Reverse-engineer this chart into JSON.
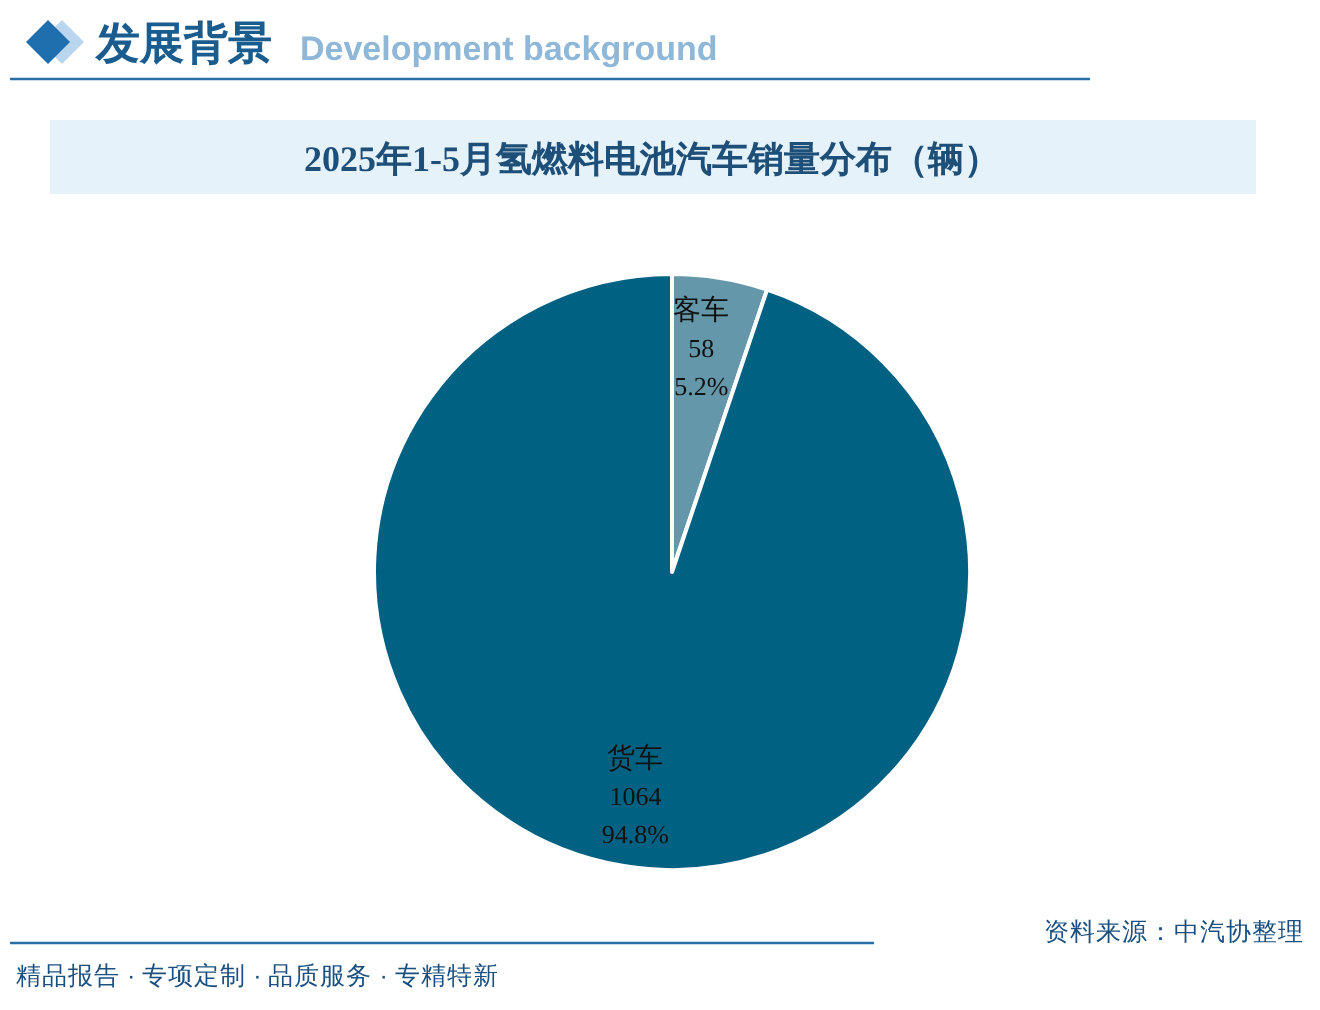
{
  "chart_data": {
    "type": "pie",
    "title": "2025年1-5月氢燃料电池汽车销量分布（辆）",
    "categories": [
      "客车",
      "货车"
    ],
    "values": [
      58,
      1064
    ],
    "colors": [
      "#6497aa",
      "#006182"
    ],
    "value_labels": [
      "58\n5.2%",
      "1064\n94.8%"
    ],
    "annotations": [
      "发展背景",
      "Development background",
      "资料来源：中汽协整理",
      "精品报告 · 专项定制 · 品质服务 · 专精特新"
    ]
  }
}
